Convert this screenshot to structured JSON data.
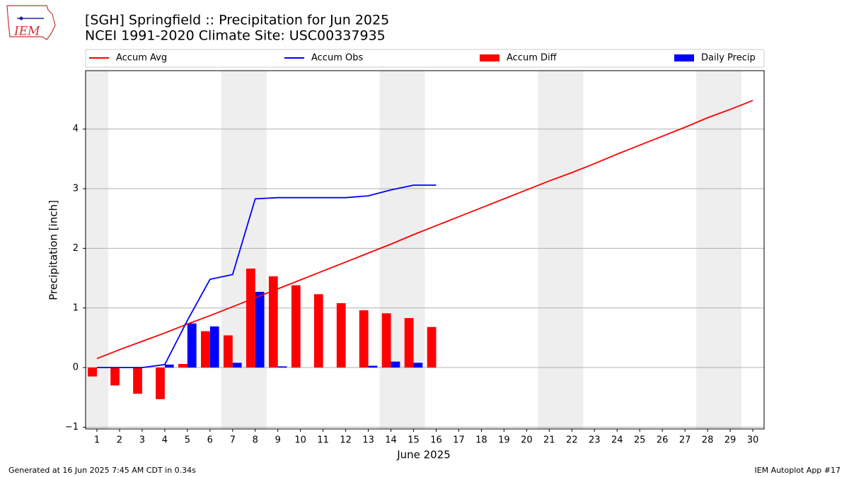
{
  "logo_text": "IEM",
  "footer_left": "Generated at 16 Jun 2025 7:45 AM CDT in 0.34s",
  "footer_right": "IEM Autoplot App #17",
  "chart_data": {
    "type": "combo",
    "title": "[SGH] Springfield :: Precipitation for Jun 2025",
    "subtitle": "NCEI 1991-2020 Climate Site: USC00337935",
    "x_label": "June 2025",
    "y_label": "Precipitation [inch]",
    "x": [
      1,
      2,
      3,
      4,
      5,
      6,
      7,
      8,
      9,
      10,
      11,
      12,
      13,
      14,
      15,
      16,
      17,
      18,
      19,
      20,
      21,
      22,
      23,
      24,
      25,
      26,
      27,
      28,
      29,
      30
    ],
    "xlim": [
      0.5,
      30.5
    ],
    "xticks": [
      1,
      2,
      3,
      4,
      5,
      6,
      7,
      8,
      9,
      10,
      11,
      12,
      13,
      14,
      15,
      16,
      17,
      18,
      19,
      20,
      21,
      22,
      23,
      24,
      25,
      26,
      27,
      28,
      29,
      30
    ],
    "ylim": [
      -1.03,
      4.98
    ],
    "yticks": [
      {
        "value": -1,
        "label": "−1"
      },
      0,
      1,
      2,
      3,
      4
    ],
    "grid": true,
    "shaded_spans": [
      [
        0.5,
        1.5
      ],
      [
        6.5,
        8.5
      ],
      [
        13.5,
        15.5
      ],
      [
        20.5,
        22.5
      ],
      [
        27.5,
        29.5
      ]
    ],
    "shade_color": "#eeeeee",
    "series": [
      {
        "name": "Accum Avg",
        "style": "line",
        "color": "#ff0000",
        "values": [
          0.15,
          0.3,
          0.44,
          0.58,
          0.73,
          0.87,
          1.02,
          1.17,
          1.32,
          1.47,
          1.62,
          1.77,
          1.92,
          2.07,
          2.23,
          2.38,
          2.53,
          2.68,
          2.83,
          2.98,
          3.13,
          3.27,
          3.42,
          3.58,
          3.73,
          3.88,
          4.03,
          4.19,
          4.33,
          4.48
        ]
      },
      {
        "name": "Accum Obs",
        "style": "line",
        "color": "#0000ff",
        "values": [
          0,
          0,
          0,
          0.05,
          0.79,
          1.48,
          1.56,
          2.83,
          2.85,
          2.85,
          2.85,
          2.85,
          2.88,
          2.98,
          3.06,
          3.06,
          null,
          null,
          null,
          null,
          null,
          null,
          null,
          null,
          null,
          null,
          null,
          null,
          null,
          null
        ]
      },
      {
        "name": "Accum Diff",
        "style": "bar",
        "offset": -1,
        "color": "#ff0000",
        "values": [
          -0.15,
          -0.3,
          -0.44,
          -0.53,
          0.06,
          0.61,
          0.54,
          1.66,
          1.53,
          1.38,
          1.23,
          1.08,
          0.96,
          0.91,
          0.83,
          0.68,
          null,
          null,
          null,
          null,
          null,
          null,
          null,
          null,
          null,
          null,
          null,
          null,
          null,
          null
        ]
      },
      {
        "name": "Daily Precip",
        "style": "bar",
        "offset": 1,
        "color": "#0000ff",
        "values": [
          0,
          0,
          0,
          0.05,
          0.74,
          0.69,
          0.08,
          1.27,
          0.02,
          0,
          0,
          0,
          0.03,
          0.1,
          0.08,
          0,
          null,
          null,
          null,
          null,
          null,
          null,
          null,
          null,
          null,
          null,
          null,
          null,
          null,
          null
        ]
      }
    ]
  }
}
